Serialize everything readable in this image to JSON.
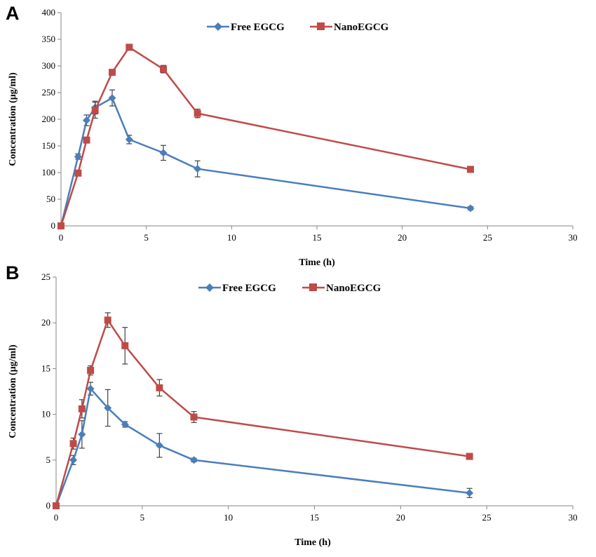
{
  "colors": {
    "free": "#4a7ebb",
    "nano": "#be4b48",
    "axis": "#868686",
    "err": "#404040"
  },
  "chart_data": [
    {
      "type": "line",
      "panel": "A",
      "xlabel": "Time (h)",
      "ylabel": "Concentration (μg/ml)",
      "xlim": [
        0,
        30
      ],
      "ylim": [
        0,
        400
      ],
      "xticks": [
        0,
        5,
        10,
        15,
        20,
        25,
        30
      ],
      "yticks": [
        0,
        50,
        100,
        150,
        200,
        250,
        300,
        350,
        400
      ],
      "legend_position": "top-center",
      "series": [
        {
          "name": "Free EGCG",
          "marker": "diamond",
          "color": "#4a7ebb",
          "x": [
            0,
            1,
            1.5,
            2,
            3,
            4,
            6,
            8,
            24
          ],
          "y": [
            0,
            130,
            198,
            222,
            240,
            162,
            137,
            107,
            33
          ],
          "err": [
            0,
            5,
            10,
            12,
            15,
            8,
            14,
            15,
            3
          ]
        },
        {
          "name": "NanoEGCG",
          "marker": "square",
          "color": "#be4b48",
          "x": [
            0,
            1,
            1.5,
            2,
            3,
            4,
            6,
            8,
            24
          ],
          "y": [
            0,
            99,
            161,
            217,
            288,
            335,
            294,
            211,
            106
          ],
          "err": [
            0,
            4,
            5,
            15,
            4,
            5,
            7,
            8,
            3
          ]
        }
      ]
    },
    {
      "type": "line",
      "panel": "B",
      "xlabel": "Time (h)",
      "ylabel": "Concentration (μg/ml)",
      "xlim": [
        0,
        30
      ],
      "ylim": [
        0,
        25
      ],
      "xticks": [
        0,
        5,
        10,
        15,
        20,
        25,
        30
      ],
      "yticks": [
        0,
        5,
        10,
        15,
        20,
        25
      ],
      "legend_position": "top-center",
      "series": [
        {
          "name": "Free EGCG",
          "marker": "diamond",
          "color": "#4a7ebb",
          "x": [
            0,
            1,
            1.5,
            2,
            3,
            4,
            6,
            8,
            24
          ],
          "y": [
            0,
            5,
            7.8,
            12.8,
            10.7,
            8.9,
            6.6,
            5.0,
            1.4
          ],
          "err": [
            0,
            0.5,
            1.5,
            0.7,
            2.0,
            0.3,
            1.3,
            0.2,
            0.5
          ]
        },
        {
          "name": "NanoEGCG",
          "marker": "square",
          "color": "#be4b48",
          "x": [
            0,
            1,
            1.5,
            2,
            3,
            4,
            6,
            8,
            24
          ],
          "y": [
            0,
            6.8,
            10.6,
            14.8,
            20.3,
            17.5,
            12.9,
            9.7,
            5.4
          ],
          "err": [
            0,
            0.6,
            1.0,
            0.5,
            0.8,
            2.0,
            0.9,
            0.6,
            0.2
          ]
        }
      ]
    }
  ]
}
